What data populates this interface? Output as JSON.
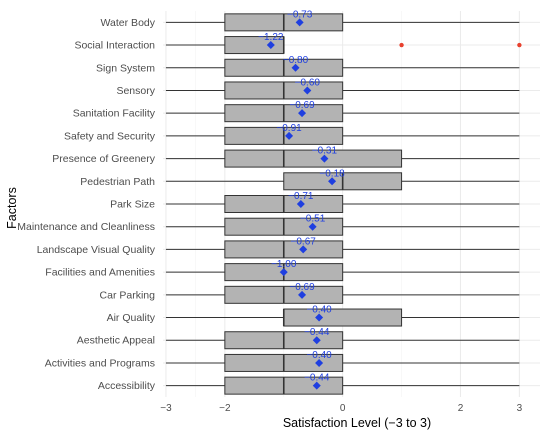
{
  "chart_data": {
    "type": "boxplot",
    "xlabel": "Satisfaction Level (−3 to 3)",
    "ylabel": "Factors",
    "xlim": [
      -3.05,
      3.35
    ],
    "xticks": [
      -3,
      -2,
      0,
      2,
      3
    ],
    "xtick_labels": [
      "−3",
      "−2",
      "0",
      "2",
      "3"
    ],
    "grid": true,
    "colors": {
      "box": "#b3b3b3",
      "box_stroke": "#333333",
      "mean": "#1f3fe0",
      "outlier": "#e8412e",
      "grid": "#ebebeb"
    },
    "categories": [
      "Water Body",
      "Social Interaction",
      "Sign System",
      "Sensory",
      "Sanitation Facility",
      "Safety and Security",
      "Presence of Greenery",
      "Pedestrian Path",
      "Park Size",
      "Maintenance and Cleanliness",
      "Landscape Visual Quality",
      "Facilities and Amenities",
      "Car Parking",
      "Air Quality",
      "Aesthetic Appeal",
      "Activities and Programs",
      "Accessibility"
    ],
    "boxes": [
      {
        "whisker_low": -3,
        "q1": -2,
        "median": -1,
        "q3": 0,
        "whisker_high": 3,
        "mean": -0.73,
        "mean_label": "−0.73",
        "outliers": []
      },
      {
        "whisker_low": -3,
        "q1": -2,
        "median": -1,
        "q3": -1,
        "whisker_high": -1,
        "mean": -1.22,
        "mean_label": "−1.22",
        "outliers": [
          1,
          3
        ]
      },
      {
        "whisker_low": -3,
        "q1": -2,
        "median": -1,
        "q3": 0,
        "whisker_high": 3,
        "mean": -0.8,
        "mean_label": "−0.80",
        "outliers": []
      },
      {
        "whisker_low": -3,
        "q1": -2,
        "median": -1,
        "q3": 0,
        "whisker_high": 3,
        "mean": -0.6,
        "mean_label": "−0.60",
        "outliers": []
      },
      {
        "whisker_low": -3,
        "q1": -2,
        "median": -1,
        "q3": 0,
        "whisker_high": 3,
        "mean": -0.69,
        "mean_label": "−0.69",
        "outliers": []
      },
      {
        "whisker_low": -3,
        "q1": -2,
        "median": -1,
        "q3": 0,
        "whisker_high": 3,
        "mean": -0.91,
        "mean_label": "−0.91",
        "outliers": []
      },
      {
        "whisker_low": -3,
        "q1": -2,
        "median": -1,
        "q3": 1,
        "whisker_high": 3,
        "mean": -0.31,
        "mean_label": "−0.31",
        "outliers": []
      },
      {
        "whisker_low": -3,
        "q1": -1,
        "median": 0,
        "q3": 1,
        "whisker_high": 3,
        "mean": -0.18,
        "mean_label": "−0.18",
        "outliers": []
      },
      {
        "whisker_low": -3,
        "q1": -2,
        "median": -1,
        "q3": 0,
        "whisker_high": 3,
        "mean": -0.71,
        "mean_label": "−0.71",
        "outliers": []
      },
      {
        "whisker_low": -3,
        "q1": -2,
        "median": -1,
        "q3": 0,
        "whisker_high": 3,
        "mean": -0.51,
        "mean_label": "−0.51",
        "outliers": []
      },
      {
        "whisker_low": -3,
        "q1": -2,
        "median": -1,
        "q3": 0,
        "whisker_high": 3,
        "mean": -0.67,
        "mean_label": "−0.67",
        "outliers": []
      },
      {
        "whisker_low": -3,
        "q1": -2,
        "median": -1,
        "q3": 0,
        "whisker_high": 3,
        "mean": -1.0,
        "mean_label": "−1.00",
        "outliers": []
      },
      {
        "whisker_low": -3,
        "q1": -2,
        "median": -1,
        "q3": 0,
        "whisker_high": 3,
        "mean": -0.69,
        "mean_label": "−0.69",
        "outliers": []
      },
      {
        "whisker_low": -3,
        "q1": -1,
        "median": -1,
        "q3": 1,
        "whisker_high": 3,
        "mean": -0.4,
        "mean_label": "−0.40",
        "outliers": []
      },
      {
        "whisker_low": -3,
        "q1": -2,
        "median": -1,
        "q3": 0,
        "whisker_high": 3,
        "mean": -0.44,
        "mean_label": "−0.44",
        "outliers": []
      },
      {
        "whisker_low": -3,
        "q1": -2,
        "median": -1,
        "q3": 0,
        "whisker_high": 3,
        "mean": -0.4,
        "mean_label": "−0.40",
        "outliers": []
      },
      {
        "whisker_low": -3,
        "q1": -2,
        "median": -1,
        "q3": 0,
        "whisker_high": 3,
        "mean": -0.44,
        "mean_label": "−0.44",
        "outliers": []
      }
    ]
  }
}
